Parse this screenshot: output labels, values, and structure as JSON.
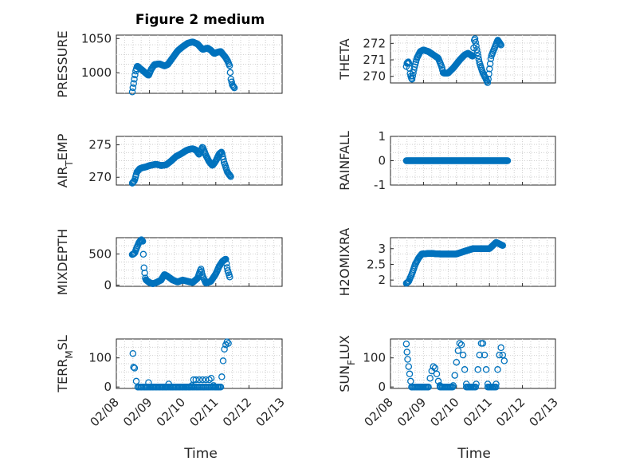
{
  "figure": {
    "title": "Figure 2 medium",
    "xlabel": "Time"
  },
  "chart_data": [
    {
      "type": "scatter",
      "ylabel": "PRESSURE",
      "title": "Figure 2 medium",
      "xlim": [
        0,
        5
      ],
      "ylim": [
        970,
        1055
      ],
      "yticks": [
        1000,
        1050
      ],
      "xticks": [
        "02/08",
        "02/09",
        "02/10",
        "02/11",
        "02/12",
        "02/13"
      ],
      "show_xticks": false,
      "knots": [
        [
          0.48,
          972
        ],
        [
          0.5,
          978
        ],
        [
          0.58,
          1002
        ],
        [
          0.63,
          1010
        ],
        [
          0.7,
          1007
        ],
        [
          0.8,
          1003
        ],
        [
          0.9,
          999
        ],
        [
          0.97,
          996
        ],
        [
          1.05,
          1005
        ],
        [
          1.15,
          1012
        ],
        [
          1.3,
          1013
        ],
        [
          1.45,
          1010
        ],
        [
          1.55,
          1012
        ],
        [
          1.7,
          1022
        ],
        [
          1.85,
          1032
        ],
        [
          2.0,
          1038
        ],
        [
          2.15,
          1043
        ],
        [
          2.3,
          1045
        ],
        [
          2.45,
          1042
        ],
        [
          2.6,
          1034
        ],
        [
          2.75,
          1036
        ],
        [
          2.85,
          1033
        ],
        [
          2.95,
          1028
        ],
        [
          3.05,
          1030
        ],
        [
          3.15,
          1031
        ],
        [
          3.2,
          1028
        ],
        [
          3.3,
          1022
        ],
        [
          3.35,
          1018
        ],
        [
          3.42,
          1010
        ],
        [
          3.45,
          992
        ],
        [
          3.5,
          982
        ],
        [
          3.56,
          978
        ]
      ],
      "n": 150
    },
    {
      "type": "scatter",
      "ylabel": "THETA",
      "xlim": [
        0,
        5
      ],
      "ylim": [
        269.6,
        272.5
      ],
      "yticks": [
        270,
        271,
        272
      ],
      "xticks": [
        "02/08",
        "02/09",
        "02/10",
        "02/11",
        "02/12",
        "02/13"
      ],
      "show_xticks": false,
      "knots": [
        [
          0.48,
          270.6
        ],
        [
          0.5,
          270.8
        ],
        [
          0.55,
          270.9
        ],
        [
          0.6,
          270.1
        ],
        [
          0.65,
          269.8
        ],
        [
          0.72,
          270.5
        ],
        [
          0.8,
          271.1
        ],
        [
          0.9,
          271.5
        ],
        [
          1.0,
          271.6
        ],
        [
          1.15,
          271.5
        ],
        [
          1.3,
          271.3
        ],
        [
          1.45,
          271.1
        ],
        [
          1.55,
          270.6
        ],
        [
          1.6,
          270.2
        ],
        [
          1.75,
          270.2
        ],
        [
          1.9,
          270.5
        ],
        [
          2.1,
          271.0
        ],
        [
          2.25,
          271.3
        ],
        [
          2.35,
          271.4
        ],
        [
          2.5,
          271.2
        ],
        [
          2.55,
          272.4
        ],
        [
          2.62,
          271.6
        ],
        [
          2.7,
          270.8
        ],
        [
          2.8,
          270.2
        ],
        [
          2.88,
          269.9
        ],
        [
          2.95,
          269.6
        ],
        [
          3.05,
          271.2
        ],
        [
          3.15,
          271.7
        ],
        [
          3.25,
          272.2
        ],
        [
          3.35,
          271.9
        ]
      ],
      "n": 150
    },
    {
      "type": "scatter",
      "ylabel": "AIR_TEMP",
      "xlim": [
        0,
        5
      ],
      "ylim": [
        268.8,
        276.3
      ],
      "yticks": [
        270,
        275
      ],
      "xticks": [
        "02/08",
        "02/09",
        "02/10",
        "02/11",
        "02/12",
        "02/13"
      ],
      "show_xticks": false,
      "knots": [
        [
          0.48,
          269.1
        ],
        [
          0.55,
          269.5
        ],
        [
          0.62,
          270.8
        ],
        [
          0.7,
          271.3
        ],
        [
          0.8,
          271.5
        ],
        [
          0.9,
          271.6
        ],
        [
          1.0,
          271.8
        ],
        [
          1.1,
          271.9
        ],
        [
          1.2,
          272.0
        ],
        [
          1.35,
          271.8
        ],
        [
          1.5,
          271.9
        ],
        [
          1.65,
          272.5
        ],
        [
          1.8,
          273.2
        ],
        [
          1.95,
          273.6
        ],
        [
          2.1,
          274.1
        ],
        [
          2.2,
          274.3
        ],
        [
          2.3,
          274.4
        ],
        [
          2.4,
          274.2
        ],
        [
          2.5,
          273.5
        ],
        [
          2.6,
          274.7
        ],
        [
          2.7,
          273.4
        ],
        [
          2.8,
          272.4
        ],
        [
          2.9,
          271.8
        ],
        [
          3.0,
          272.5
        ],
        [
          3.1,
          273.6
        ],
        [
          3.18,
          273.9
        ],
        [
          3.25,
          272.3
        ],
        [
          3.35,
          270.8
        ],
        [
          3.45,
          270.1
        ]
      ],
      "n": 150
    },
    {
      "type": "scatter",
      "ylabel": "RAINFALL",
      "xlim": [
        0,
        5
      ],
      "ylim": [
        -1,
        1
      ],
      "yticks": [
        -1,
        0,
        1
      ],
      "xticks": [
        "02/08",
        "02/09",
        "02/10",
        "02/11",
        "02/12",
        "02/13"
      ],
      "show_xticks": false,
      "knots": [
        [
          0.48,
          0
        ],
        [
          3.55,
          0
        ]
      ],
      "n": 150
    },
    {
      "type": "scatter",
      "ylabel": "MIXDEPTH",
      "xlim": [
        0,
        5
      ],
      "ylim": [
        -20,
        760
      ],
      "yticks": [
        0,
        500
      ],
      "xticks": [
        "02/08",
        "02/09",
        "02/10",
        "02/11",
        "02/12",
        "02/13"
      ],
      "show_xticks": false,
      "knots": [
        [
          0.48,
          490
        ],
        [
          0.55,
          510
        ],
        [
          0.6,
          580
        ],
        [
          0.68,
          680
        ],
        [
          0.75,
          730
        ],
        [
          0.8,
          700
        ],
        [
          0.83,
          300
        ],
        [
          0.88,
          90
        ],
        [
          0.95,
          60
        ],
        [
          1.0,
          40
        ],
        [
          1.1,
          20
        ],
        [
          1.2,
          40
        ],
        [
          1.35,
          80
        ],
        [
          1.45,
          170
        ],
        [
          1.55,
          140
        ],
        [
          1.7,
          80
        ],
        [
          1.85,
          50
        ],
        [
          2.0,
          80
        ],
        [
          2.15,
          60
        ],
        [
          2.3,
          40
        ],
        [
          2.45,
          110
        ],
        [
          2.55,
          260
        ],
        [
          2.6,
          150
        ],
        [
          2.7,
          30
        ],
        [
          2.85,
          60
        ],
        [
          3.0,
          180
        ],
        [
          3.1,
          300
        ],
        [
          3.2,
          380
        ],
        [
          3.3,
          420
        ],
        [
          3.35,
          250
        ],
        [
          3.42,
          130
        ]
      ],
      "n": 150
    },
    {
      "type": "scatter",
      "ylabel": "H2OMIXRA",
      "xlim": [
        0,
        5
      ],
      "ylim": [
        1.8,
        3.35
      ],
      "yticks": [
        2,
        2.5,
        3
      ],
      "xticks": [
        "02/08",
        "02/09",
        "02/10",
        "02/11",
        "02/12",
        "02/13"
      ],
      "show_xticks": false,
      "knots": [
        [
          0.48,
          1.9
        ],
        [
          0.55,
          1.95
        ],
        [
          0.65,
          2.2
        ],
        [
          0.75,
          2.5
        ],
        [
          0.85,
          2.7
        ],
        [
          0.95,
          2.83
        ],
        [
          1.2,
          2.85
        ],
        [
          1.5,
          2.83
        ],
        [
          2.0,
          2.83
        ],
        [
          2.2,
          2.9
        ],
        [
          2.5,
          3.0
        ],
        [
          3.0,
          3.0
        ],
        [
          3.1,
          3.1
        ],
        [
          3.2,
          3.2
        ],
        [
          3.3,
          3.15
        ],
        [
          3.4,
          3.1
        ]
      ],
      "n": 150
    },
    {
      "type": "scatter",
      "ylabel": "TERR_MSL",
      "xlim": [
        0,
        5
      ],
      "ylim": [
        -5,
        165
      ],
      "yticks": [
        0,
        100
      ],
      "xticks": [
        "02/08",
        "02/09",
        "02/10",
        "02/11",
        "02/12",
        "02/13"
      ],
      "show_xticks": true,
      "points": [
        [
          0.5,
          115
        ],
        [
          0.52,
          68
        ],
        [
          0.55,
          65
        ],
        [
          0.6,
          20
        ],
        [
          0.65,
          0
        ],
        [
          0.75,
          0
        ],
        [
          0.85,
          0
        ],
        [
          0.92,
          0
        ],
        [
          0.97,
          15
        ],
        [
          1.02,
          0
        ],
        [
          1.1,
          0
        ],
        [
          1.2,
          0
        ],
        [
          1.3,
          0
        ],
        [
          1.4,
          0
        ],
        [
          1.5,
          0
        ],
        [
          1.58,
          10
        ],
        [
          1.64,
          0
        ],
        [
          1.7,
          0
        ],
        [
          1.8,
          0
        ],
        [
          1.9,
          0
        ],
        [
          2.0,
          0
        ],
        [
          2.1,
          0
        ],
        [
          2.2,
          0
        ],
        [
          2.28,
          5
        ],
        [
          2.33,
          25
        ],
        [
          2.4,
          25
        ],
        [
          2.5,
          25
        ],
        [
          2.6,
          25
        ],
        [
          2.7,
          25
        ],
        [
          2.8,
          25
        ],
        [
          2.86,
          30
        ],
        [
          2.93,
          5
        ],
        [
          3.0,
          0
        ],
        [
          3.08,
          0
        ],
        [
          3.15,
          0
        ],
        [
          3.18,
          35
        ],
        [
          3.22,
          90
        ],
        [
          3.26,
          130
        ],
        [
          3.3,
          145
        ],
        [
          3.34,
          155
        ],
        [
          3.38,
          150
        ]
      ],
      "fill_zero": true
    },
    {
      "type": "scatter",
      "ylabel": "SUN_FLUX",
      "xlim": [
        0,
        5
      ],
      "ylim": [
        -5,
        165
      ],
      "yticks": [
        0,
        100
      ],
      "xticks": [
        "02/08",
        "02/09",
        "02/10",
        "02/11",
        "02/12",
        "02/13"
      ],
      "show_xticks": true,
      "cycles": [
        [
          0.48,
          0.82,
          148
        ],
        [
          1.15,
          1.5,
          70
        ],
        [
          1.9,
          2.3,
          155
        ],
        [
          2.6,
          2.95,
          150
        ],
        [
          3.2,
          3.45,
          135
        ]
      ],
      "cycle_points": [
        [
          0.48,
          148
        ],
        [
          0.5,
          120
        ],
        [
          0.52,
          95
        ],
        [
          0.55,
          70
        ],
        [
          0.58,
          45
        ],
        [
          0.61,
          20
        ],
        [
          0.64,
          0
        ],
        [
          1.15,
          0
        ],
        [
          1.2,
          30
        ],
        [
          1.25,
          55
        ],
        [
          1.3,
          70
        ],
        [
          1.35,
          65
        ],
        [
          1.4,
          45
        ],
        [
          1.45,
          20
        ],
        [
          1.5,
          5
        ],
        [
          1.9,
          5
        ],
        [
          1.95,
          40
        ],
        [
          2.0,
          85
        ],
        [
          2.05,
          125
        ],
        [
          2.1,
          150
        ],
        [
          2.15,
          145
        ],
        [
          2.2,
          110
        ],
        [
          2.25,
          60
        ],
        [
          2.3,
          10
        ],
        [
          2.6,
          10
        ],
        [
          2.65,
          60
        ],
        [
          2.7,
          110
        ],
        [
          2.75,
          150
        ],
        [
          2.8,
          150
        ],
        [
          2.85,
          110
        ],
        [
          2.9,
          60
        ],
        [
          2.95,
          10
        ],
        [
          3.2,
          10
        ],
        [
          3.25,
          60
        ],
        [
          3.3,
          110
        ],
        [
          3.35,
          135
        ],
        [
          3.4,
          110
        ],
        [
          3.45,
          90
        ]
      ],
      "fill_zero": true
    }
  ]
}
